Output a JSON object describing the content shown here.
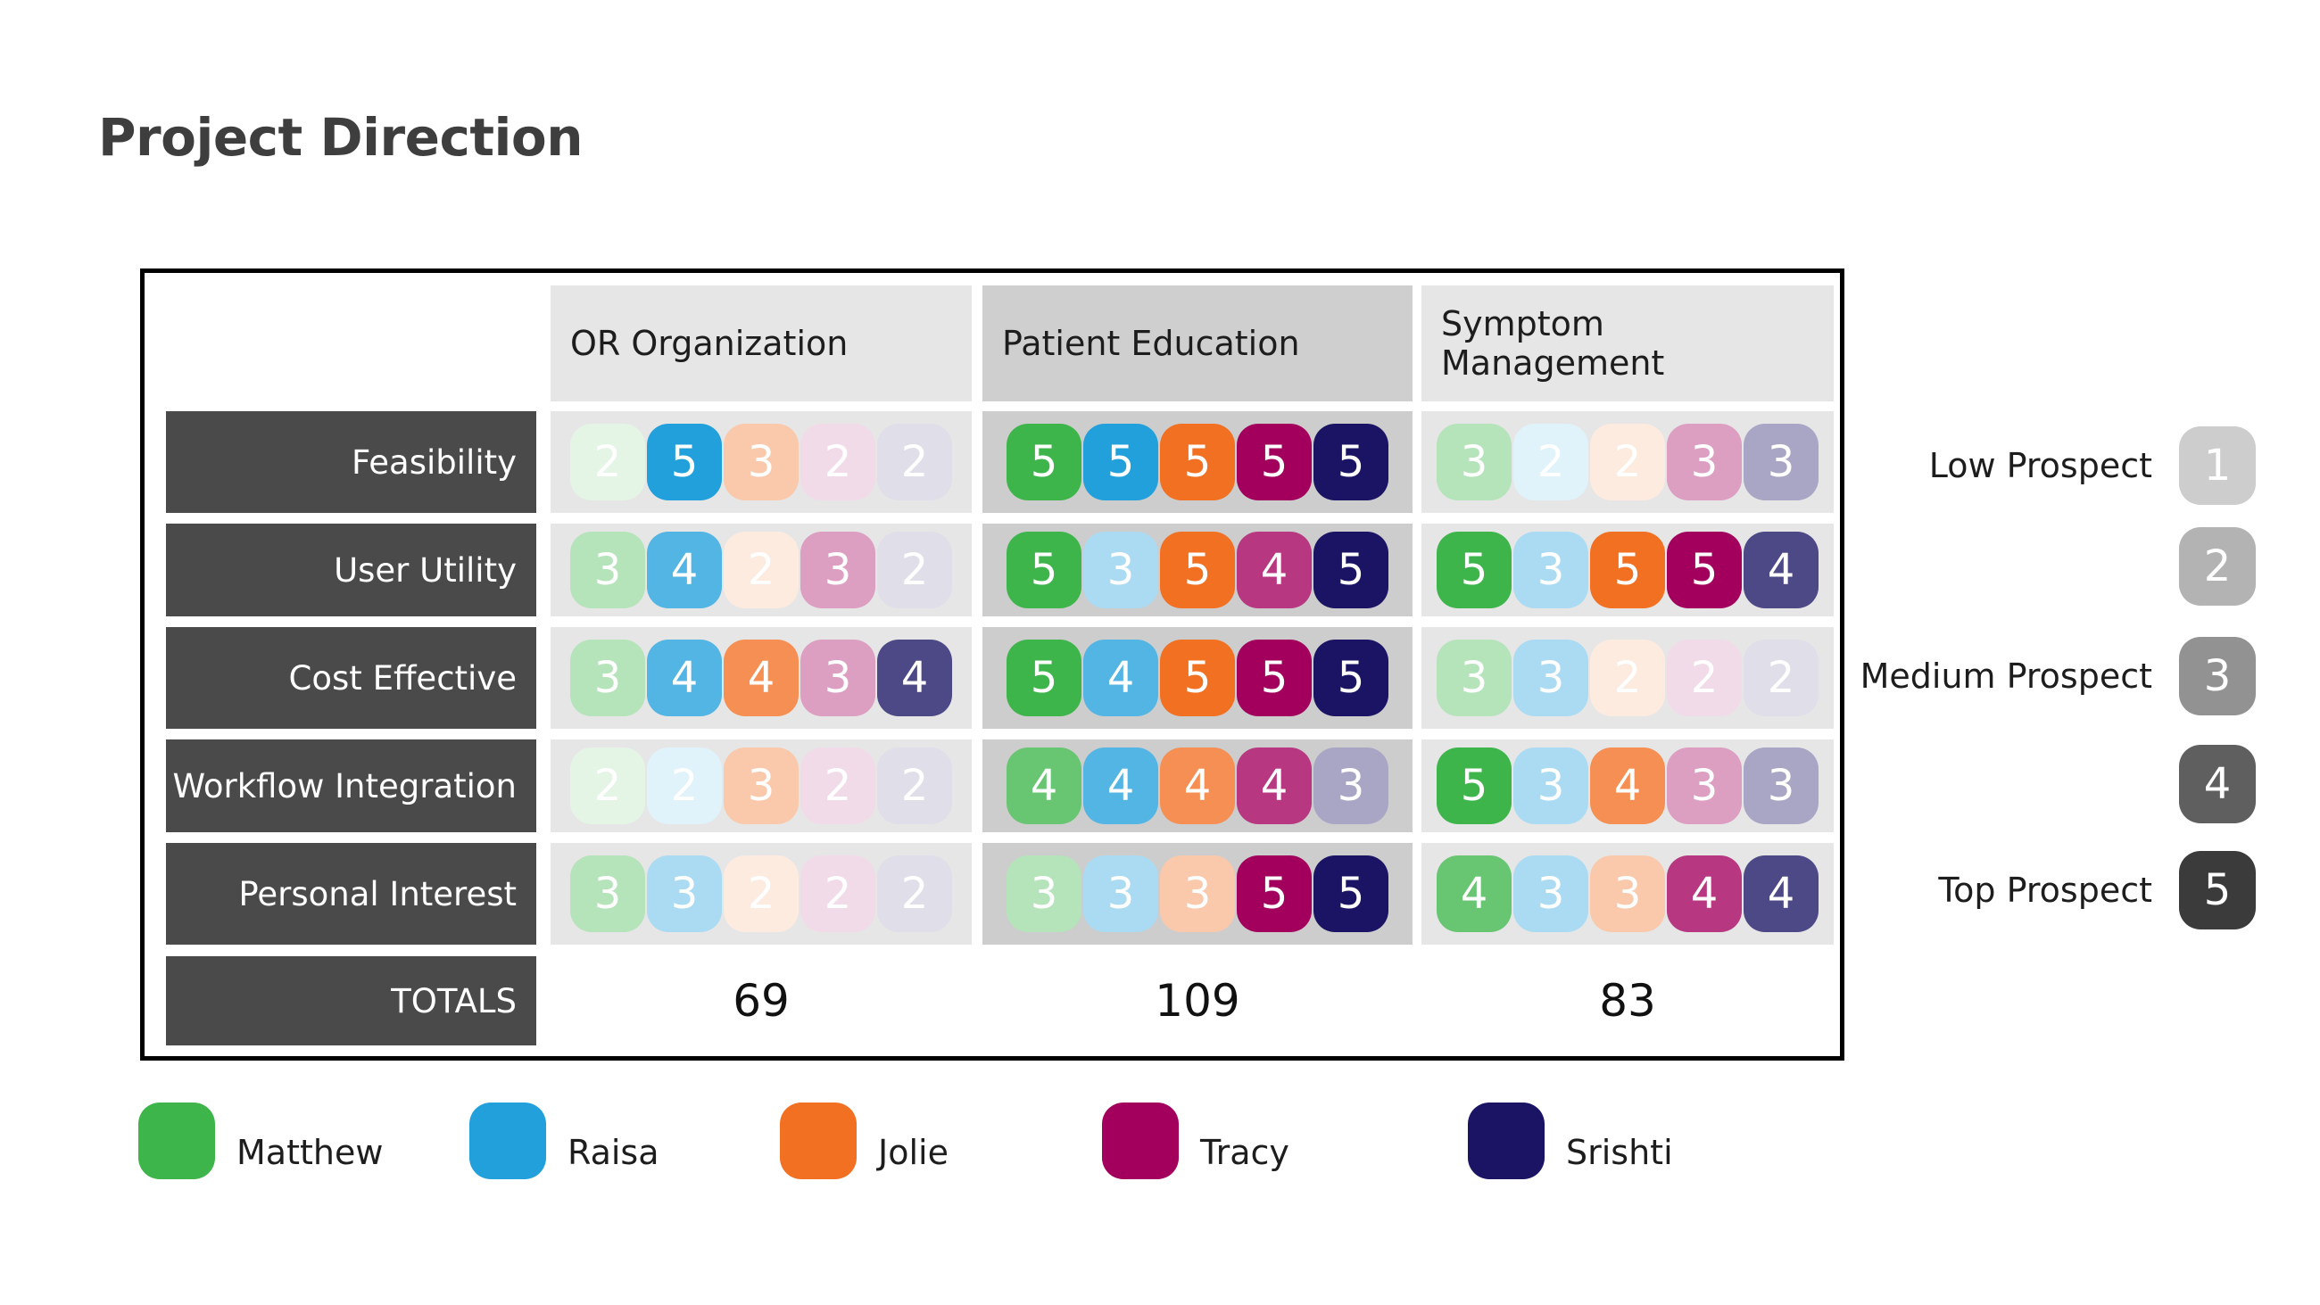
{
  "title": "Project Direction",
  "chart_data": {
    "type": "table",
    "columns": [
      "OR Organization",
      "Patient Education",
      "Symptom Management"
    ],
    "rows": [
      "Feasibility",
      "User Utility",
      "Cost Effective",
      "Workflow Integration",
      "Personal Interest"
    ],
    "totals_label": "TOTALS",
    "totals": [
      69,
      109,
      83
    ],
    "people": [
      "Matthew",
      "Raisa",
      "Jolie",
      "Tracy",
      "Srishti"
    ],
    "person_colors": [
      "#3db54a",
      "#22a0dc",
      "#f27022",
      "#a3005d",
      "#1b1464"
    ],
    "scores": [
      [
        [
          2,
          5,
          3,
          2,
          2
        ],
        [
          5,
          5,
          5,
          5,
          5
        ],
        [
          3,
          2,
          2,
          3,
          3
        ]
      ],
      [
        [
          3,
          4,
          2,
          3,
          2
        ],
        [
          5,
          3,
          5,
          4,
          5
        ],
        [
          5,
          3,
          5,
          5,
          4
        ]
      ],
      [
        [
          3,
          4,
          4,
          3,
          4
        ],
        [
          5,
          4,
          5,
          5,
          5
        ],
        [
          3,
          3,
          2,
          2,
          2
        ]
      ],
      [
        [
          2,
          2,
          3,
          2,
          2
        ],
        [
          4,
          4,
          4,
          4,
          3
        ],
        [
          5,
          3,
          4,
          3,
          3
        ]
      ],
      [
        [
          3,
          3,
          2,
          2,
          2
        ],
        [
          3,
          3,
          3,
          5,
          5
        ],
        [
          4,
          3,
          3,
          4,
          4
        ]
      ]
    ],
    "scale": {
      "values": [
        1,
        2,
        3,
        4,
        5
      ],
      "labels": [
        "Low Prospect",
        "",
        "Medium Prospect",
        "",
        "Top Prospect"
      ],
      "colors": [
        "#cdcdcd",
        "#b3b3b3",
        "#929292",
        "#5f5f5f",
        "#3b3b3b"
      ]
    },
    "column_header_colors": [
      "#e6e6e6",
      "#cfcfcf",
      "#e6e6e6"
    ],
    "column_cell_colors": [
      "#e6e6e6",
      "#cdcdcd",
      "#e6e6e6"
    ]
  }
}
